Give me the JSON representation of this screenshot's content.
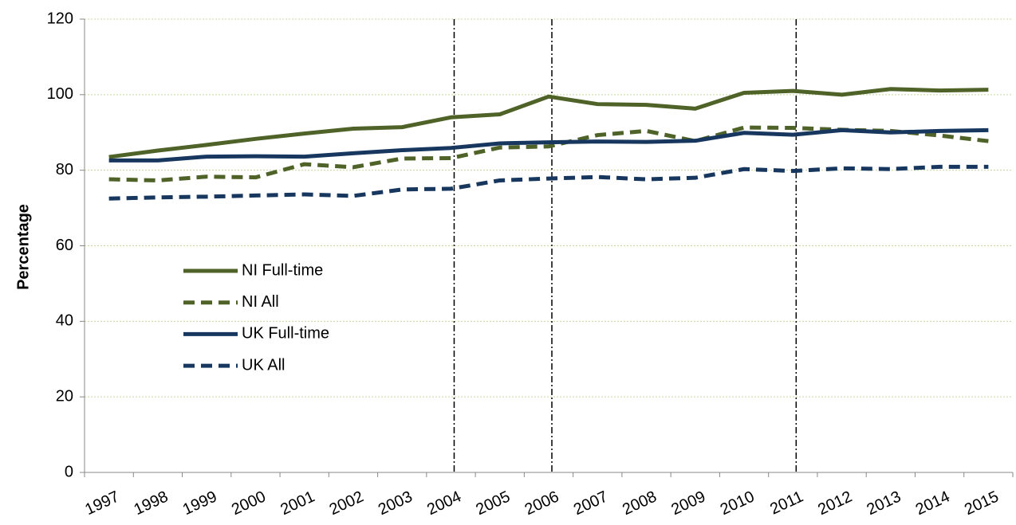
{
  "chart_data": {
    "type": "line",
    "y_label": "Percentage",
    "categories": [
      "1997",
      "1998",
      "1999",
      "2000",
      "2001",
      "2002",
      "2003",
      "2004",
      "2005",
      "2006",
      "2007",
      "2008",
      "2009",
      "2010",
      "2011",
      "2012",
      "2013",
      "2014",
      "2015"
    ],
    "series": [
      {
        "name": "NI Full-time",
        "color": "#4f6228",
        "dashed": false,
        "values": [
          83.5,
          85.2,
          86.7,
          88.3,
          89.7,
          91.0,
          91.4,
          94.0,
          94.8,
          99.5,
          97.5,
          97.3,
          96.3,
          100.5,
          101.0,
          100.0,
          101.5,
          101.1,
          101.3
        ]
      },
      {
        "name": "NI All",
        "color": "#4f6228",
        "dashed": true,
        "values": [
          77.6,
          77.3,
          78.3,
          78.1,
          81.6,
          80.8,
          83.1,
          83.2,
          86.0,
          86.3,
          89.3,
          90.4,
          87.7,
          91.3,
          91.2,
          90.7,
          90.4,
          89.2,
          87.7
        ]
      },
      {
        "name": "UK Full-time",
        "color": "#17375e",
        "dashed": false,
        "values": [
          82.6,
          82.6,
          83.6,
          83.7,
          83.6,
          84.5,
          85.3,
          85.9,
          87.1,
          87.4,
          87.6,
          87.5,
          87.8,
          89.9,
          89.4,
          90.6,
          90.0,
          90.4,
          90.6
        ]
      },
      {
        "name": "UK All",
        "color": "#17375e",
        "dashed": true,
        "values": [
          72.5,
          72.8,
          73.0,
          73.3,
          73.6,
          73.2,
          74.9,
          75.1,
          77.3,
          77.8,
          78.2,
          77.6,
          78.0,
          80.3,
          79.8,
          80.5,
          80.3,
          80.9,
          80.9
        ]
      }
    ],
    "break_categories": [
      "2004",
      "2006",
      "2011"
    ],
    "ylim": [
      0,
      120
    ],
    "yticks": [
      0,
      20,
      40,
      60,
      80,
      100,
      120
    ],
    "grid": true
  }
}
